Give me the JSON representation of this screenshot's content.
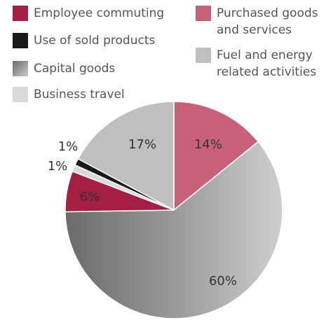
{
  "chart_data": {
    "type": "pie",
    "categories": [
      "Purchased goods and services",
      "Capital goods",
      "Employee commuting",
      "Business travel",
      "Use of sold products",
      "Fuel and energy related activities"
    ],
    "values": [
      14,
      60,
      6,
      1,
      1,
      17
    ],
    "value_labels": [
      "14%",
      "60%",
      "6%",
      "1%",
      "1%",
      "17%"
    ],
    "colors": [
      "#c9607a",
      "#999999",
      "#a51f45",
      "#d9d9d9",
      "#1a1a1a",
      "#bfbfbf"
    ]
  }
}
